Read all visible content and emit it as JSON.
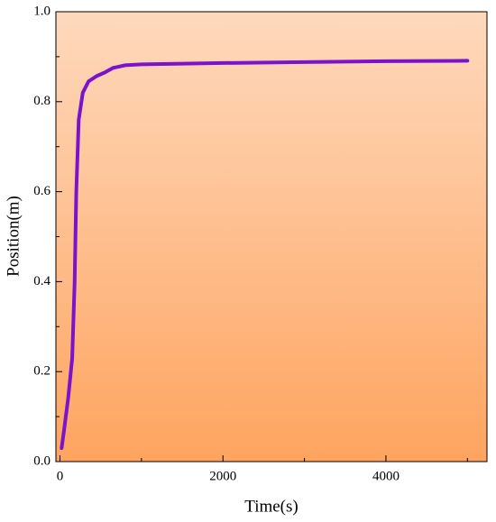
{
  "chart_data": {
    "type": "line",
    "xlabel": "Time(s)",
    "ylabel": "Position(m)",
    "x": [
      20,
      50,
      100,
      150,
      180,
      200,
      230,
      280,
      350,
      450,
      550,
      650,
      800,
      1000,
      2000,
      3000,
      4000,
      5000
    ],
    "values": [
      0.03,
      0.07,
      0.14,
      0.23,
      0.4,
      0.6,
      0.76,
      0.82,
      0.845,
      0.857,
      0.865,
      0.875,
      0.881,
      0.883,
      0.886,
      0.888,
      0.89,
      0.891
    ],
    "color": "#7b12cc",
    "xlim": [
      -50,
      5240
    ],
    "ylim": [
      0,
      1
    ],
    "xticks": [
      0,
      2000,
      4000
    ],
    "xminorticks": [
      1000,
      3000,
      5000
    ],
    "yticks": [
      {
        "value": 0,
        "label": "0.0"
      },
      0.2,
      0.4,
      0.6,
      0.8,
      {
        "value": 1,
        "label": "1.0"
      }
    ],
    "yminorticks": [
      0.1,
      0.3,
      0.5,
      0.7,
      0.9
    ]
  }
}
